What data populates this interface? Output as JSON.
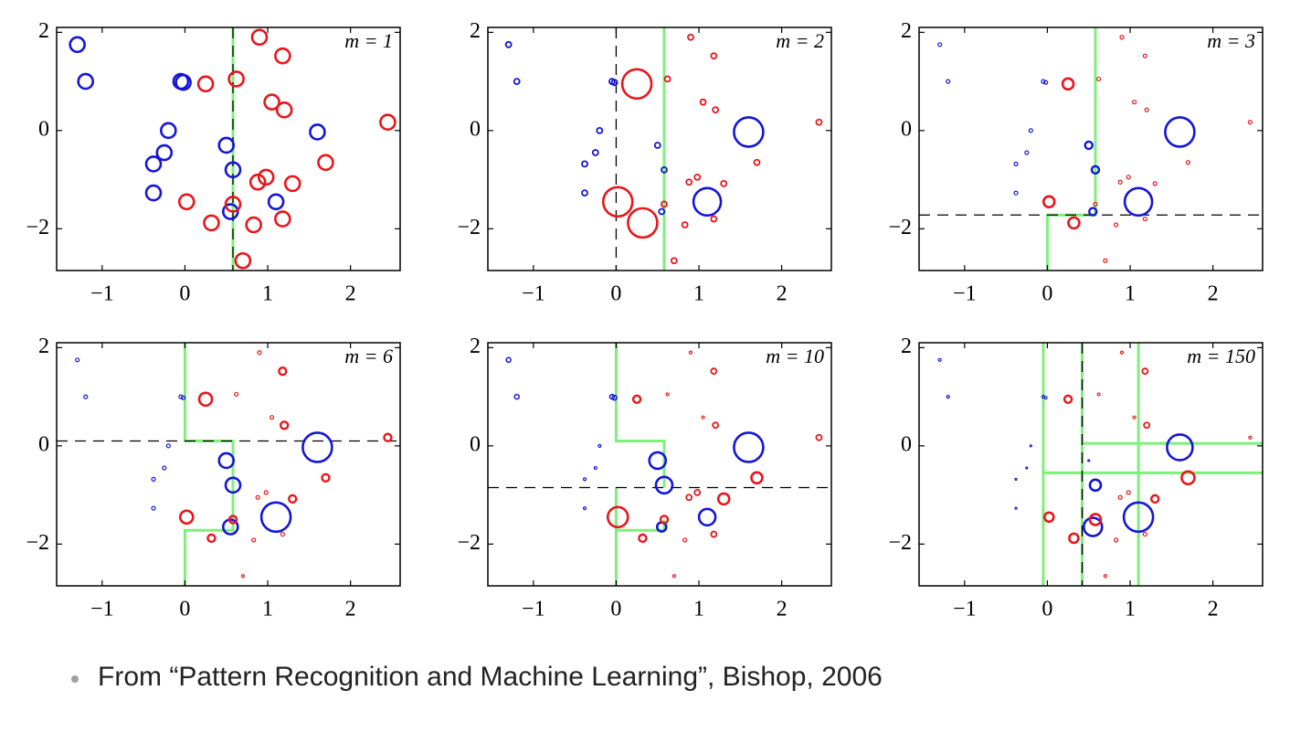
{
  "chart_data": [
    {
      "type": "scatter",
      "title": "m = 1",
      "xlim": [
        -1.55,
        2.6
      ],
      "ylim": [
        -2.85,
        2.1
      ],
      "xticks": [
        {
          "value": -1,
          "label": "−1"
        },
        0,
        1,
        2
      ],
      "yticks": [
        {
          "value": -2,
          "label": "−2"
        },
        0,
        2
      ],
      "series": [
        {
          "color": "#1515d8",
          "x": [
            -1.3,
            -1.2,
            -0.05,
            -0.02,
            -0.2,
            -0.25,
            -0.38,
            -0.38,
            0.5,
            0.58,
            0.55,
            1.1,
            1.6
          ],
          "y": [
            1.75,
            1.0,
            1.0,
            0.98,
            0.0,
            -0.45,
            -0.68,
            -1.27,
            -0.3,
            -0.8,
            -1.65,
            -1.45,
            -0.03
          ],
          "sizes": [
            8,
            8,
            8,
            8,
            8,
            8,
            8,
            8,
            8,
            8,
            8,
            8,
            8
          ]
        },
        {
          "color": "#e8161b",
          "x": [
            0.9,
            1.18,
            0.62,
            0.25,
            1.05,
            1.2,
            2.45,
            1.7,
            1.3,
            0.98,
            0.88,
            0.02,
            0.58,
            0.32,
            0.83,
            1.18,
            0.7
          ],
          "y": [
            1.9,
            1.52,
            1.05,
            0.95,
            0.58,
            0.42,
            0.17,
            -0.65,
            -1.08,
            -0.95,
            -1.05,
            -1.45,
            -1.5,
            -1.88,
            -1.92,
            -1.8,
            -2.65
          ],
          "sizes": [
            8,
            8,
            8,
            8,
            8,
            8,
            8,
            8,
            8,
            8,
            8,
            8,
            8,
            8,
            8,
            8,
            8
          ]
        }
      ],
      "green_color": "#7df07a",
      "green": [
        {
          "x": [
            0.58,
            0.58
          ],
          "y": [
            2.1,
            -2.85
          ]
        }
      ],
      "dashed": {
        "x": [
          0.58,
          0.58
        ],
        "y": [
          2.1,
          -2.85
        ]
      }
    },
    {
      "type": "scatter",
      "title": "m = 2",
      "xlim": [
        -1.55,
        2.6
      ],
      "ylim": [
        -2.85,
        2.1
      ],
      "xticks": [
        {
          "value": -1,
          "label": "−1"
        },
        0,
        1,
        2
      ],
      "yticks": [
        {
          "value": -2,
          "label": "−2"
        },
        0,
        2
      ],
      "series": [
        {
          "color": "#1515d8",
          "x": [
            -1.3,
            -1.2,
            -0.05,
            -0.02,
            -0.2,
            -0.25,
            -0.38,
            -0.38,
            0.5,
            0.58,
            0.55,
            1.1,
            1.6
          ],
          "y": [
            1.75,
            1.0,
            1.0,
            0.98,
            0.0,
            -0.45,
            -0.68,
            -1.27,
            -0.3,
            -0.8,
            -1.65,
            -1.45,
            -0.03
          ],
          "sizes": [
            3,
            3,
            3,
            3,
            3,
            3,
            3,
            3,
            3,
            3,
            3,
            15,
            16
          ]
        },
        {
          "color": "#e8161b",
          "x": [
            0.9,
            1.18,
            0.62,
            0.25,
            1.05,
            1.2,
            2.45,
            1.7,
            1.3,
            0.98,
            0.88,
            0.02,
            0.58,
            0.32,
            0.83,
            1.18,
            0.7
          ],
          "y": [
            1.9,
            1.52,
            1.05,
            0.95,
            0.58,
            0.42,
            0.17,
            -0.65,
            -1.08,
            -0.95,
            -1.05,
            -1.45,
            -1.5,
            -1.88,
            -1.92,
            -1.8,
            -2.65
          ],
          "sizes": [
            3,
            3,
            3,
            16,
            3,
            3,
            3,
            3,
            3,
            3,
            3,
            16,
            3,
            16,
            3,
            3,
            3
          ]
        }
      ],
      "green_color": "#7df07a",
      "green": [
        {
          "x": [
            0.58,
            0.58
          ],
          "y": [
            2.1,
            -2.85
          ]
        }
      ],
      "dashed": {
        "x": [
          0,
          0
        ],
        "y": [
          2.1,
          -2.85
        ]
      }
    },
    {
      "type": "scatter",
      "title": "m = 3",
      "xlim": [
        -1.55,
        2.6
      ],
      "ylim": [
        -2.85,
        2.1
      ],
      "xticks": [
        {
          "value": -1,
          "label": "−1"
        },
        0,
        1,
        2
      ],
      "yticks": [
        {
          "value": -2,
          "label": "−2"
        },
        0,
        2
      ],
      "series": [
        {
          "color": "#1515d8",
          "x": [
            -1.3,
            -1.2,
            -0.05,
            -0.02,
            -0.2,
            -0.25,
            -0.38,
            -0.38,
            0.5,
            0.58,
            0.55,
            1.1,
            1.6
          ],
          "y": [
            1.75,
            1.0,
            1.0,
            0.98,
            0.0,
            -0.45,
            -0.68,
            -1.27,
            -0.3,
            -0.8,
            -1.65,
            -1.45,
            -0.03
          ],
          "sizes": [
            2,
            2,
            2,
            2,
            2,
            2,
            2,
            2,
            4,
            4,
            4,
            15,
            16
          ]
        },
        {
          "color": "#e8161b",
          "x": [
            0.9,
            1.18,
            0.62,
            0.25,
            1.05,
            1.2,
            2.45,
            1.7,
            1.3,
            0.98,
            0.88,
            0.02,
            0.58,
            0.32,
            0.83,
            1.18,
            0.7
          ],
          "y": [
            1.9,
            1.52,
            1.05,
            0.95,
            0.58,
            0.42,
            0.17,
            -0.65,
            -1.08,
            -0.95,
            -1.05,
            -1.45,
            -1.5,
            -1.88,
            -1.92,
            -1.8,
            -2.65
          ],
          "sizes": [
            2,
            2,
            2,
            6,
            2,
            2,
            2,
            2,
            2,
            2,
            2,
            6,
            2,
            6,
            2,
            2,
            2
          ]
        }
      ],
      "green_color": "#7df07a",
      "green": [
        {
          "x": [
            0.58,
            0.58,
            0,
            0
          ],
          "y": [
            2.1,
            -1.72,
            -1.72,
            -2.85
          ]
        }
      ],
      "dashed": {
        "x": [
          -1.55,
          2.6
        ],
        "y": [
          -1.72,
          -1.72
        ]
      }
    },
    {
      "type": "scatter",
      "title": "m = 6",
      "xlim": [
        -1.55,
        2.6
      ],
      "ylim": [
        -2.85,
        2.1
      ],
      "xticks": [
        {
          "value": -1,
          "label": "−1"
        },
        0,
        1,
        2
      ],
      "yticks": [
        {
          "value": -2,
          "label": "−2"
        },
        0,
        2
      ],
      "series": [
        {
          "color": "#1515d8",
          "x": [
            -1.3,
            -1.2,
            -0.05,
            -0.02,
            -0.2,
            -0.25,
            -0.38,
            -0.38,
            0.5,
            0.58,
            0.55,
            1.1,
            1.6
          ],
          "y": [
            1.75,
            1.0,
            1.0,
            0.98,
            0.0,
            -0.45,
            -0.68,
            -1.27,
            -0.3,
            -0.8,
            -1.65,
            -1.45,
            -0.03
          ],
          "sizes": [
            2,
            2,
            2,
            2,
            2,
            2,
            2,
            2,
            8,
            8,
            8,
            16,
            16
          ]
        },
        {
          "color": "#e8161b",
          "x": [
            0.9,
            1.18,
            0.62,
            0.25,
            1.05,
            1.2,
            2.45,
            1.7,
            1.3,
            0.98,
            0.88,
            0.02,
            0.58,
            0.32,
            0.83,
            1.18,
            0.7
          ],
          "y": [
            1.9,
            1.52,
            1.05,
            0.95,
            0.58,
            0.42,
            0.17,
            -0.65,
            -1.08,
            -0.95,
            -1.05,
            -1.45,
            -1.5,
            -1.88,
            -1.92,
            -1.8,
            -2.65
          ],
          "sizes": [
            2,
            4,
            2,
            7,
            2,
            4,
            4,
            4,
            4,
            2,
            2,
            7,
            4,
            4,
            2,
            2,
            1.5
          ]
        }
      ],
      "green_color": "#7df07a",
      "green": [
        {
          "x": [
            0,
            0,
            0.58,
            0.58,
            0,
            0
          ],
          "y": [
            2.1,
            0.1,
            0.1,
            -1.72,
            -1.72,
            -2.85
          ]
        }
      ],
      "dashed": {
        "x": [
          -1.55,
          2.6
        ],
        "y": [
          0.1,
          0.1
        ]
      }
    },
    {
      "type": "scatter",
      "title": "m = 10",
      "xlim": [
        -1.55,
        2.6
      ],
      "ylim": [
        -2.85,
        2.1
      ],
      "xticks": [
        {
          "value": -1,
          "label": "−1"
        },
        0,
        1,
        2
      ],
      "yticks": [
        {
          "value": -2,
          "label": "−2"
        },
        0,
        2
      ],
      "series": [
        {
          "color": "#1515d8",
          "x": [
            -1.3,
            -1.2,
            -0.05,
            -0.02,
            -0.2,
            -0.25,
            -0.38,
            -0.38,
            0.5,
            0.58,
            0.55,
            1.1,
            1.6
          ],
          "y": [
            1.75,
            1.0,
            1.0,
            0.98,
            0.0,
            -0.45,
            -0.68,
            -1.27,
            -0.3,
            -0.8,
            -1.65,
            -1.45,
            -0.03
          ],
          "sizes": [
            2.5,
            2.5,
            2.5,
            2.5,
            1.5,
            1.5,
            1.5,
            1.5,
            9,
            9,
            5,
            9,
            16
          ]
        },
        {
          "color": "#e8161b",
          "x": [
            0.9,
            1.18,
            0.62,
            0.25,
            1.05,
            1.2,
            2.45,
            1.7,
            1.3,
            0.98,
            0.88,
            0.02,
            0.58,
            0.32,
            0.83,
            1.18,
            0.7
          ],
          "y": [
            1.9,
            1.52,
            1.05,
            0.95,
            0.58,
            0.42,
            0.17,
            -0.65,
            -1.08,
            -0.95,
            -1.05,
            -1.45,
            -1.5,
            -1.88,
            -1.92,
            -1.8,
            -2.65
          ],
          "sizes": [
            1.5,
            3,
            1.5,
            4,
            1.5,
            3,
            3,
            6,
            6,
            3,
            3,
            11,
            4,
            4,
            2,
            3,
            1.5
          ]
        }
      ],
      "green_color": "#7df07a",
      "green": [
        {
          "x": [
            0,
            0,
            0.58,
            0.58
          ],
          "y": [
            2.1,
            0.1,
            0.1,
            -0.85
          ]
        },
        {
          "x": [
            0,
            0
          ],
          "y": [
            -0.85,
            -2.85
          ]
        },
        {
          "x": [
            0,
            0.58,
            0.58
          ],
          "y": [
            -1.72,
            -1.72,
            -1.5
          ]
        }
      ],
      "dashed": {
        "x": [
          -1.55,
          2.6
        ],
        "y": [
          -0.85,
          -0.85
        ]
      }
    },
    {
      "type": "scatter",
      "title": "m = 150",
      "xlim": [
        -1.55,
        2.6
      ],
      "ylim": [
        -2.85,
        2.1
      ],
      "xticks": [
        {
          "value": -1,
          "label": "−1"
        },
        0,
        1,
        2
      ],
      "yticks": [
        {
          "value": -2,
          "label": "−2"
        },
        0,
        2
      ],
      "series": [
        {
          "color": "#1515d8",
          "x": [
            -1.3,
            -1.2,
            -0.05,
            -0.02,
            -0.2,
            -0.25,
            -0.38,
            -0.38,
            0.5,
            0.58,
            0.55,
            1.1,
            1.6
          ],
          "y": [
            1.75,
            1.0,
            1.0,
            0.98,
            0.0,
            -0.45,
            -0.68,
            -1.27,
            -0.3,
            -0.8,
            -1.65,
            -1.45,
            -0.03
          ],
          "sizes": [
            1.5,
            1.5,
            1.5,
            1.5,
            1,
            1,
            1,
            1,
            1,
            6,
            10,
            16,
            14
          ]
        },
        {
          "color": "#e8161b",
          "x": [
            0.9,
            1.18,
            0.62,
            0.25,
            1.05,
            1.2,
            2.45,
            1.7,
            1.3,
            0.98,
            0.88,
            0.02,
            0.58,
            0.32,
            0.83,
            1.18,
            0.7
          ],
          "y": [
            1.9,
            1.52,
            1.05,
            0.95,
            0.58,
            0.42,
            0.17,
            -0.65,
            -1.08,
            -0.95,
            -1.05,
            -1.45,
            -1.5,
            -1.88,
            -1.92,
            -1.8,
            -2.65
          ],
          "sizes": [
            1.5,
            3,
            1.5,
            4,
            1.5,
            3,
            1.5,
            7,
            4,
            2,
            2,
            5,
            6,
            5,
            2,
            2,
            1.5
          ]
        }
      ],
      "green_color": "#7df07a",
      "green": [
        {
          "x": [
            -0.05,
            -0.05
          ],
          "y": [
            2.1,
            -2.85
          ]
        },
        {
          "x": [
            0.42,
            0.42
          ],
          "y": [
            2.1,
            -2.85
          ]
        },
        {
          "x": [
            1.1,
            1.1
          ],
          "y": [
            2.1,
            -2.85
          ]
        },
        {
          "x": [
            0.42,
            2.6
          ],
          "y": [
            0.05,
            0.05
          ]
        },
        {
          "x": [
            -0.05,
            2.6
          ],
          "y": [
            -0.55,
            -0.55
          ]
        }
      ],
      "dashed": {
        "x": [
          0.42,
          0.42
        ],
        "y": [
          2.1,
          -2.85
        ]
      }
    }
  ],
  "caption": "From “Pattern Recognition and Machine Learning”, Bishop, 2006"
}
